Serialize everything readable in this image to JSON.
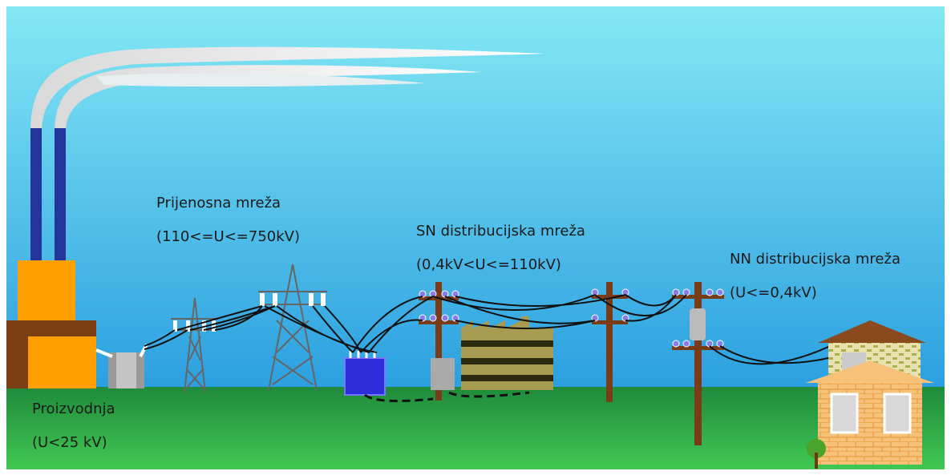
{
  "sections": [
    {
      "title": "Proizvodnja",
      "voltage": "(U<25 kV)"
    },
    {
      "title": "Prijenosna mreža",
      "voltage": "(110<=U<=750kV)"
    },
    {
      "title": "SN distribucijska mreža",
      "voltage": "(0,4kV<U<=110kV)"
    },
    {
      "title": "NN distribucijska mreža",
      "voltage": "(U<=0,4kV)"
    }
  ]
}
